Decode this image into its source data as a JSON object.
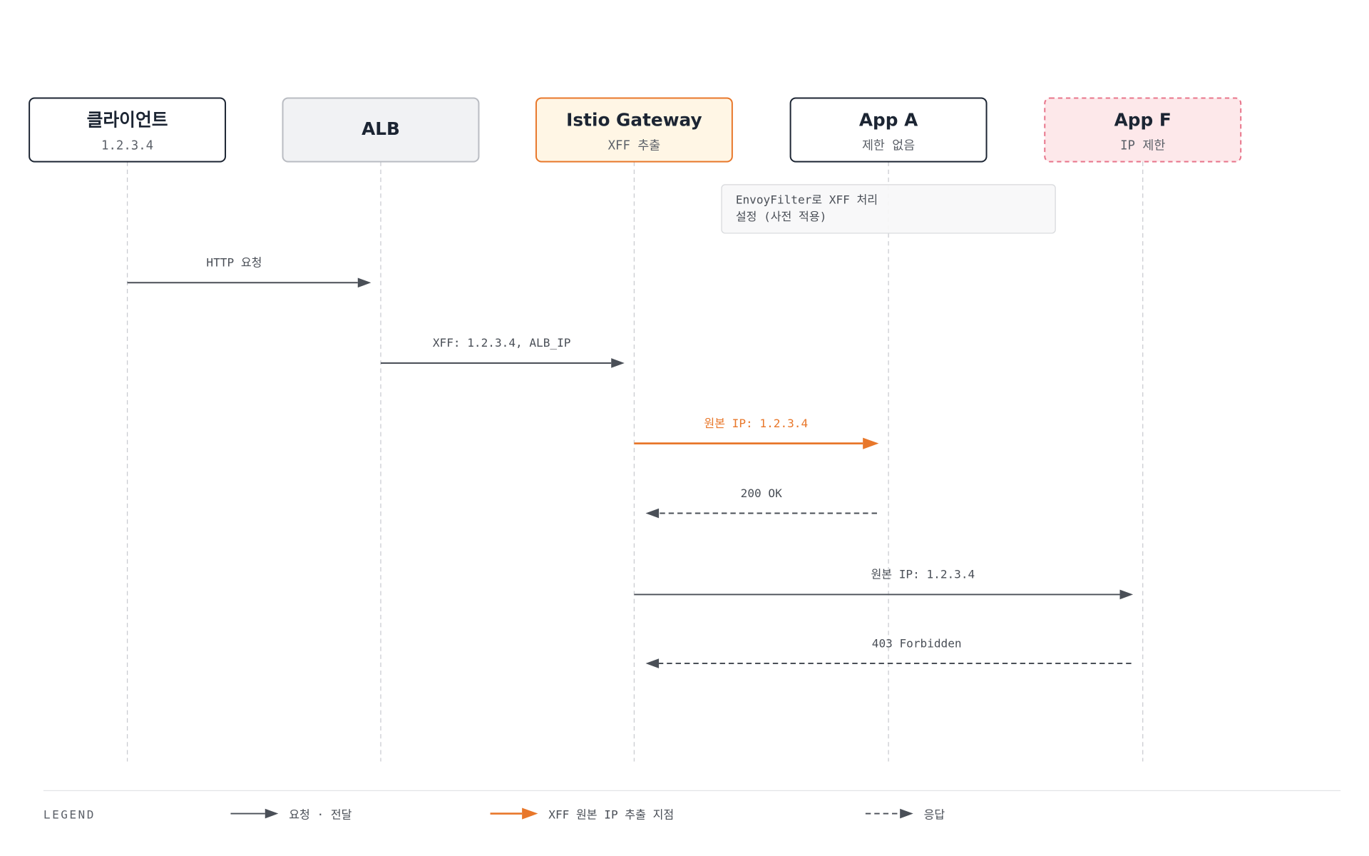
{
  "participants": [
    {
      "title": "클라이언트",
      "subtitle": "1.2.3.4"
    },
    {
      "title": "ALB"
    },
    {
      "title": "Istio Gateway",
      "subtitle": "XFF 추출"
    },
    {
      "title": "App A",
      "subtitle": "제한 없음"
    },
    {
      "title": "App F",
      "subtitle": "IP 제한"
    }
  ],
  "note": {
    "lines": [
      "EnvoyFilter로 XFF 처리",
      "설정 (사전 적용)"
    ]
  },
  "messages": [
    {
      "label": "HTTP 요청"
    },
    {
      "label": "XFF: 1.2.3.4, ALB_IP"
    },
    {
      "label": "원본 IP: 1.2.3.4"
    },
    {
      "label": "200 OK"
    },
    {
      "label": "원본 IP: 1.2.3.4"
    },
    {
      "label": "403 Forbidden"
    }
  ],
  "legend": {
    "title": "LEGEND",
    "items": [
      {
        "label": "요청 · 전달"
      },
      {
        "label": "XFF 원본 IP 추출 지점"
      },
      {
        "label": "응답"
      }
    ]
  }
}
